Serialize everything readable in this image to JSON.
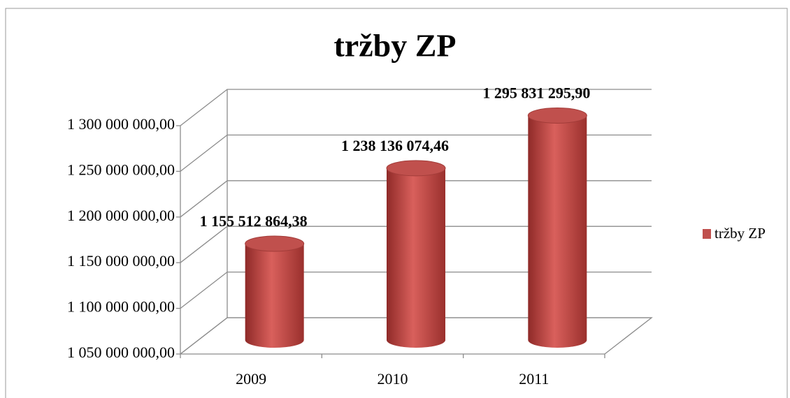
{
  "chart_data": {
    "type": "bar3d",
    "title": "tržby ZP",
    "categories": [
      "2009",
      "2010",
      "2011"
    ],
    "series": [
      {
        "name": "tržby ZP",
        "color": "#c0504d",
        "values": [
          1155512864.38,
          1238136074.46,
          1295831295.9
        ],
        "value_labels": [
          "1 155 512 864,38",
          "1 238 136 074,46",
          "1 295 831 295,90"
        ]
      }
    ],
    "ylim": [
      1050000000,
      1300000000
    ],
    "yticks": [
      {
        "value": 1050000000,
        "label": "1 050 000 000,00"
      },
      {
        "value": 1100000000,
        "label": "1 100 000 000,00"
      },
      {
        "value": 1150000000,
        "label": "1 150 000 000,00"
      },
      {
        "value": 1200000000,
        "label": "1 200 000 000,00"
      },
      {
        "value": 1250000000,
        "label": "1 250 000 000,00"
      },
      {
        "value": 1300000000,
        "label": "1 300 000 000,00"
      }
    ],
    "grid": true,
    "legend": "right"
  }
}
